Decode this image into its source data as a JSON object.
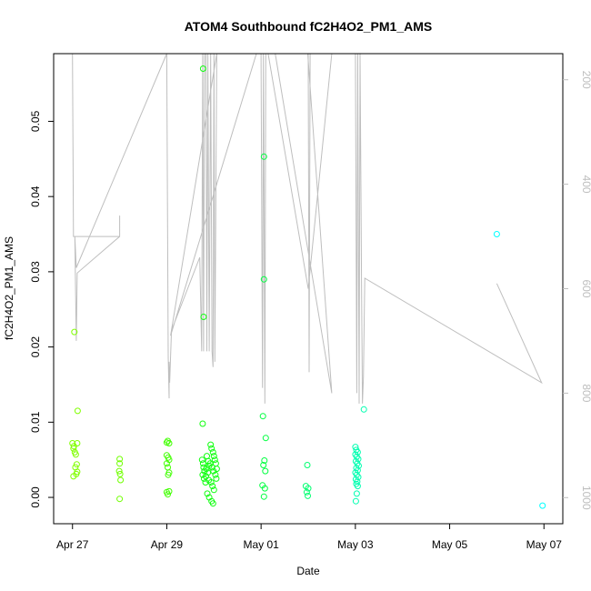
{
  "chart_data": {
    "type": "scatter",
    "title": "ATOM4 Southbound fC2H4O2_PM1_AMS",
    "xlabel": "Date",
    "ylabel": "fC2H4O2_PM1_AMS",
    "x_ticks": [
      "Apr 27",
      "Apr 29",
      "May 01",
      "May 03",
      "May 05",
      "May 07"
    ],
    "x_tick_values": [
      0,
      2,
      4,
      6,
      8,
      10
    ],
    "xlim": [
      -0.4,
      10.4
    ],
    "y_ticks": [
      "0.00",
      "0.01",
      "0.02",
      "0.03",
      "0.04",
      "0.05"
    ],
    "y_tick_values": [
      0.0,
      0.01,
      0.02,
      0.03,
      0.04,
      0.05
    ],
    "ylim": [
      -0.0035,
      0.059
    ],
    "right_axis": {
      "ticks": [
        "200",
        "400",
        "600",
        "800",
        "1000"
      ],
      "tick_values": [
        200,
        400,
        600,
        800,
        1000
      ],
      "lim": [
        1050,
        150
      ],
      "color": "#bebebe"
    },
    "grid": false,
    "point_series": [
      {
        "color": "#80ff00",
        "points": [
          [
            0.0,
            0.0072
          ],
          [
            0.02,
            0.0065
          ],
          [
            0.03,
            0.0068
          ],
          [
            0.05,
            0.006
          ],
          [
            0.07,
            0.0057
          ],
          [
            0.08,
            0.0031
          ],
          [
            0.1,
            0.0034
          ],
          [
            0.02,
            0.0028
          ],
          [
            0.06,
            0.004
          ],
          [
            0.09,
            0.0044
          ],
          [
            0.1,
            0.0072
          ],
          [
            0.04,
            0.022
          ],
          [
            0.11,
            0.0115
          ]
        ]
      },
      {
        "color": "#70ff00",
        "points": [
          [
            1.0,
            0.0051
          ],
          [
            1.0,
            0.0045
          ],
          [
            0.99,
            0.0035
          ],
          [
            1.01,
            0.0031
          ],
          [
            1.02,
            0.0023
          ],
          [
            1.0,
            -0.0002
          ]
        ]
      },
      {
        "color": "#40ff00",
        "points": [
          [
            2.0,
            0.0073
          ],
          [
            2.02,
            0.0075
          ],
          [
            2.05,
            0.0072
          ],
          [
            2.0,
            0.0056
          ],
          [
            2.03,
            0.0053
          ],
          [
            2.05,
            0.005
          ],
          [
            2.0,
            0.0045
          ],
          [
            2.02,
            0.004
          ],
          [
            2.05,
            0.0033
          ],
          [
            2.03,
            0.003
          ],
          [
            2.0,
            0.0007
          ],
          [
            2.02,
            0.0004
          ],
          [
            2.05,
            0.0008
          ]
        ]
      },
      {
        "color": "#10ff10",
        "points": [
          [
            2.77,
            0.057
          ],
          [
            2.78,
            0.024
          ],
          [
            2.76,
            0.0098
          ],
          [
            2.75,
            0.005
          ],
          [
            2.77,
            0.0045
          ],
          [
            2.78,
            0.004
          ],
          [
            2.8,
            0.0035
          ],
          [
            2.76,
            0.003
          ],
          [
            2.79,
            0.0025
          ],
          [
            2.82,
            0.002
          ],
          [
            2.85,
            0.0055
          ],
          [
            2.88,
            0.0048
          ],
          [
            2.9,
            0.0042
          ],
          [
            2.84,
            0.0038
          ],
          [
            2.87,
            0.0033
          ],
          [
            2.93,
            0.007
          ],
          [
            2.95,
            0.0065
          ],
          [
            2.98,
            0.006
          ],
          [
            3.0,
            0.0055
          ],
          [
            3.02,
            0.005
          ],
          [
            2.92,
            0.0045
          ],
          [
            2.96,
            0.004
          ],
          [
            2.99,
            0.0035
          ],
          [
            3.03,
            0.003
          ],
          [
            3.05,
            0.0025
          ],
          [
            2.94,
            0.002
          ],
          [
            2.97,
            0.0015
          ],
          [
            3.0,
            0.001
          ],
          [
            2.86,
            0.0005
          ],
          [
            2.9,
            0.0
          ],
          [
            2.95,
            -0.0005
          ],
          [
            2.98,
            -0.0008
          ],
          [
            2.83,
            0.0028
          ],
          [
            2.89,
            0.0023
          ],
          [
            3.04,
            0.0045
          ],
          [
            3.06,
            0.0038
          ]
        ]
      },
      {
        "color": "#00ff40",
        "points": [
          [
            4.06,
            0.0453
          ],
          [
            4.06,
            0.029
          ],
          [
            4.04,
            0.0108
          ],
          [
            4.1,
            0.0079
          ],
          [
            4.07,
            0.0049
          ],
          [
            4.05,
            0.0043
          ],
          [
            4.09,
            0.0035
          ],
          [
            4.03,
            0.0016
          ],
          [
            4.08,
            0.0012
          ],
          [
            4.06,
            0.0001
          ]
        ]
      },
      {
        "color": "#00ff70",
        "points": [
          [
            4.98,
            0.0043
          ],
          [
            4.95,
            0.0015
          ],
          [
            5.0,
            0.0012
          ],
          [
            4.97,
            0.0007
          ],
          [
            4.99,
            0.0002
          ]
        ]
      },
      {
        "color": "#00ffb0",
        "points": [
          [
            6.0,
            0.0067
          ],
          [
            6.02,
            0.0063
          ],
          [
            6.05,
            0.006
          ],
          [
            6.0,
            0.0057
          ],
          [
            6.03,
            0.0054
          ],
          [
            6.06,
            0.0051
          ],
          [
            6.01,
            0.0048
          ],
          [
            6.04,
            0.0045
          ],
          [
            6.07,
            0.0042
          ],
          [
            6.02,
            0.0039
          ],
          [
            6.05,
            0.0036
          ],
          [
            6.0,
            0.0033
          ],
          [
            6.03,
            0.003
          ],
          [
            6.06,
            0.0027
          ],
          [
            6.01,
            0.0024
          ],
          [
            6.04,
            0.0021
          ],
          [
            6.02,
            0.0018
          ],
          [
            6.05,
            0.0015
          ],
          [
            6.03,
            0.0005
          ],
          [
            6.01,
            -0.0005
          ],
          [
            6.18,
            0.0117
          ]
        ]
      },
      {
        "color": "#00ffff",
        "points": [
          [
            9.0,
            0.035
          ],
          [
            9.97,
            -0.0011
          ]
        ]
      }
    ],
    "line_series": {
      "color": "#bebebe",
      "axis": "right",
      "points": [
        [
          0.0,
          150
        ],
        [
          0.02,
          500
        ],
        [
          0.05,
          500
        ],
        [
          0.08,
          700
        ],
        [
          0.1,
          570
        ],
        [
          1.0,
          500
        ],
        [
          1.0,
          470
        ],
        [
          1.0,
          460
        ],
        [
          1.0,
          500
        ],
        [
          1.0,
          500
        ],
        [
          0.05,
          500
        ],
        [
          0.08,
          560
        ],
        [
          2.0,
          150
        ],
        [
          2.03,
          730
        ],
        [
          2.05,
          810
        ],
        [
          2.05,
          740
        ],
        [
          2.06,
          780
        ],
        [
          2.1,
          680
        ],
        [
          2.7,
          540
        ],
        [
          2.74,
          720
        ],
        [
          2.76,
          150
        ],
        [
          2.78,
          720
        ],
        [
          2.8,
          150
        ],
        [
          2.83,
          150
        ],
        [
          2.85,
          720
        ],
        [
          2.87,
          150
        ],
        [
          2.9,
          720
        ],
        [
          2.93,
          150
        ],
        [
          2.96,
          720
        ],
        [
          2.98,
          750
        ],
        [
          3.0,
          150
        ],
        [
          3.02,
          740
        ],
        [
          3.06,
          150
        ],
        [
          2.08,
          690
        ],
        [
          3.9,
          150
        ],
        [
          4.0,
          150
        ],
        [
          4.03,
          790
        ],
        [
          4.05,
          150
        ],
        [
          4.08,
          820
        ],
        [
          4.1,
          150
        ],
        [
          4.15,
          150
        ],
        [
          5.0,
          600
        ],
        [
          5.5,
          150
        ],
        [
          4.3,
          150
        ],
        [
          5.5,
          800
        ],
        [
          4.99,
          150
        ],
        [
          5.0,
          150
        ],
        [
          5.02,
          760
        ],
        [
          5.04,
          150
        ],
        [
          6.0,
          150
        ],
        [
          6.03,
          800
        ],
        [
          6.05,
          150
        ],
        [
          6.08,
          820
        ],
        [
          6.1,
          150
        ],
        [
          6.13,
          580
        ],
        [
          6.15,
          820
        ],
        [
          6.17,
          770
        ],
        [
          6.2,
          580
        ],
        [
          9.95,
          780
        ],
        [
          9.0,
          590
        ]
      ]
    }
  }
}
